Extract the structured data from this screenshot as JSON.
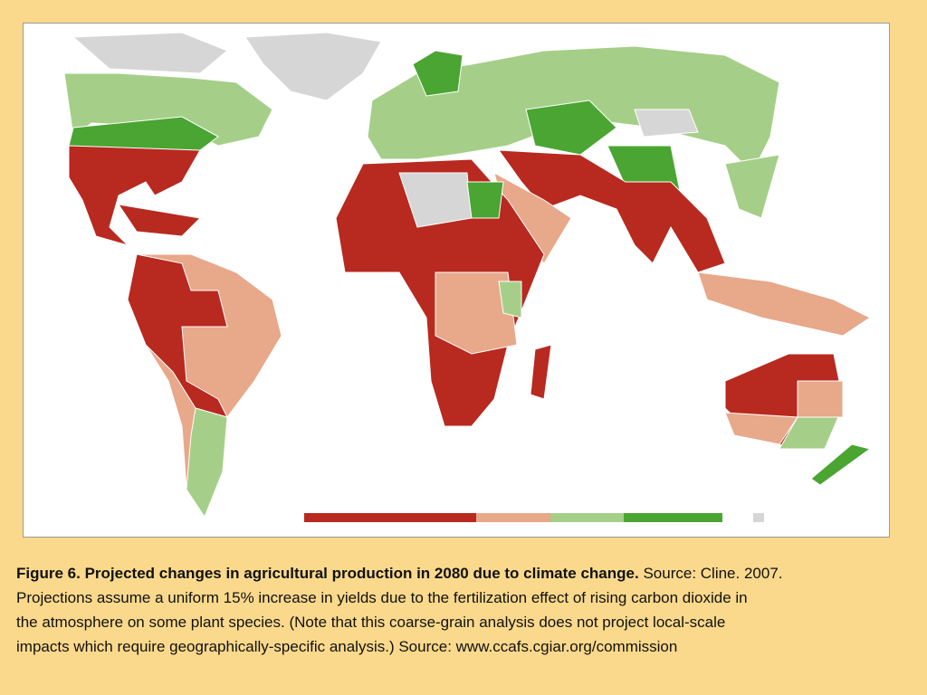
{
  "figure": {
    "caption": {
      "title": "Figure 6. Projected changes in agricultural production in 2080 due to climate change.",
      "lines": [
        "Source: Cline. 2007.",
        "Projections assume a uniform 15% increase in yields due to the fertilization effect of rising carbon dioxide in",
        "the atmosphere on some plant species. (Note that this coarse-grain analysis does not project local-scale",
        "impacts which require geographically-specific analysis.) Source: www.ccafs.cgiar.org/commission"
      ]
    }
  }
}
